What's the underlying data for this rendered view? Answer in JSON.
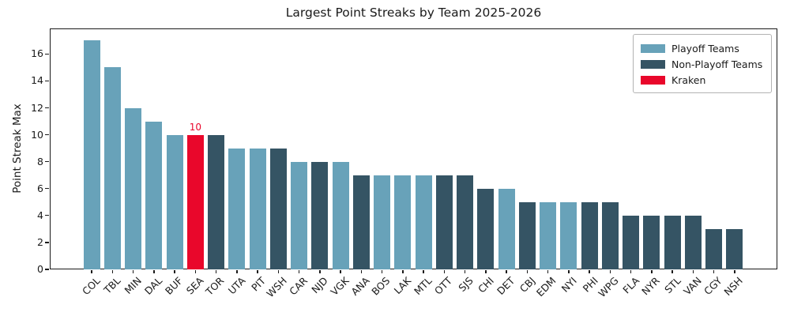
{
  "chart_data": {
    "type": "bar",
    "title": "Largest Point Streaks by Team 2025-2026",
    "xlabel": "",
    "ylabel": "Point Streak Max",
    "categories": [
      "COL",
      "TBL",
      "MIN",
      "DAL",
      "BUF",
      "SEA",
      "TOR",
      "UTA",
      "PIT",
      "WSH",
      "CAR",
      "NJD",
      "VGK",
      "ANA",
      "BOS",
      "LAK",
      "MTL",
      "OTT",
      "SJS",
      "CHI",
      "DET",
      "CBJ",
      "EDM",
      "NYI",
      "PHI",
      "WPG",
      "FLA",
      "NYR",
      "STL",
      "VAN",
      "CGY",
      "NSH"
    ],
    "values": [
      17,
      15,
      12,
      11,
      10,
      10,
      10,
      9,
      9,
      9,
      8,
      8,
      8,
      7,
      7,
      7,
      7,
      7,
      7,
      6,
      6,
      5,
      5,
      5,
      5,
      5,
      4,
      4,
      4,
      4,
      3,
      3
    ],
    "bar_groups": [
      "playoff",
      "playoff",
      "playoff",
      "playoff",
      "playoff",
      "kraken",
      "non_playoff",
      "playoff",
      "playoff",
      "non_playoff",
      "playoff",
      "non_playoff",
      "playoff",
      "non_playoff",
      "playoff",
      "playoff",
      "playoff",
      "non_playoff",
      "non_playoff",
      "non_playoff",
      "playoff",
      "non_playoff",
      "playoff",
      "playoff",
      "non_playoff",
      "non_playoff",
      "non_playoff",
      "non_playoff",
      "non_playoff",
      "non_playoff",
      "non_playoff",
      "non_playoff"
    ],
    "group_colors": {
      "playoff": "#68A2B9",
      "non_playoff": "#355464",
      "kraken": "#E9072B"
    },
    "yticks": [
      0,
      2,
      4,
      6,
      8,
      10,
      12,
      14,
      16
    ],
    "ylim": [
      0,
      17.9
    ],
    "grid": false,
    "legend": {
      "position": "upper right",
      "entries": [
        {
          "label": "Playoff Teams",
          "group": "playoff"
        },
        {
          "label": "Non-Playoff Teams",
          "group": "non_playoff"
        },
        {
          "label": "Kraken",
          "group": "kraken"
        }
      ]
    },
    "annotations": [
      {
        "text": "10",
        "category": "SEA",
        "color": "#E9072B"
      }
    ]
  }
}
